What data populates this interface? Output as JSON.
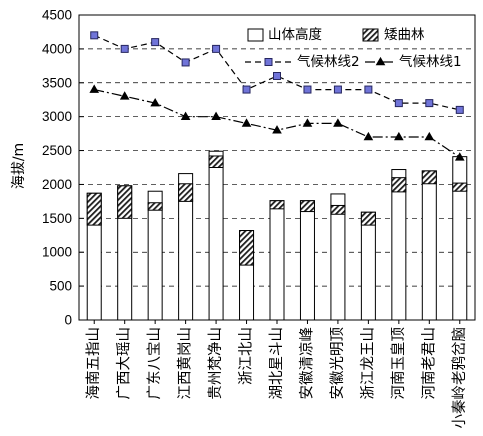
{
  "chart_data": {
    "type": "bar",
    "ylabel": "海拔/m",
    "ylim": [
      0,
      4500
    ],
    "yticks": [
      0,
      500,
      1000,
      1500,
      2000,
      2500,
      3000,
      3500,
      4000,
      4500
    ],
    "grid": true,
    "legend_position": "top-right",
    "categories": [
      "海南五指山",
      "广西大瑶山",
      "广东八宝山",
      "江西黄岗山",
      "贵州梵净山",
      "浙江北山",
      "湖北星斗山",
      "安徽清凉峰",
      "安徽光明顶",
      "浙江龙王山",
      "河南玉皇顶",
      "河南老君山",
      "小秦岭老鸦岔脑"
    ],
    "bar_series": [
      {
        "name": "山体高度",
        "values": [
          1870,
          1980,
          1900,
          2160,
          2490,
          1320,
          1760,
          1760,
          1860,
          1590,
          2220,
          2200,
          2410
        ]
      },
      {
        "name": "矮曲林",
        "ranges": [
          [
            1400,
            1870
          ],
          [
            1500,
            1980
          ],
          [
            1620,
            1730
          ],
          [
            1750,
            2010
          ],
          [
            2250,
            2420
          ],
          [
            810,
            1320
          ],
          [
            1640,
            1760
          ],
          [
            1600,
            1760
          ],
          [
            1560,
            1690
          ],
          [
            1400,
            1590
          ],
          [
            1890,
            2100
          ],
          [
            2010,
            2200
          ],
          [
            1900,
            2020
          ]
        ]
      }
    ],
    "series": [
      {
        "name": "气候林线2",
        "values": [
          4200,
          4000,
          4100,
          3800,
          4000,
          3400,
          3600,
          3400,
          3400,
          3400,
          3200,
          3200,
          3100
        ]
      },
      {
        "name": "气候林线1",
        "values": [
          3400,
          3300,
          3200,
          3000,
          3000,
          2900,
          2800,
          2900,
          2900,
          2700,
          2700,
          2700,
          2400
        ]
      }
    ]
  },
  "colors": {
    "background": "#ffffff",
    "outline": "#000000",
    "bar_fill": "#ffffff",
    "hatch": "#1e1e1e",
    "grid": "#000000",
    "treeline_2_marker": "#7074d8",
    "treeline_2_marker_edge": "#26265e",
    "treeline_1_marker": "#000000"
  }
}
